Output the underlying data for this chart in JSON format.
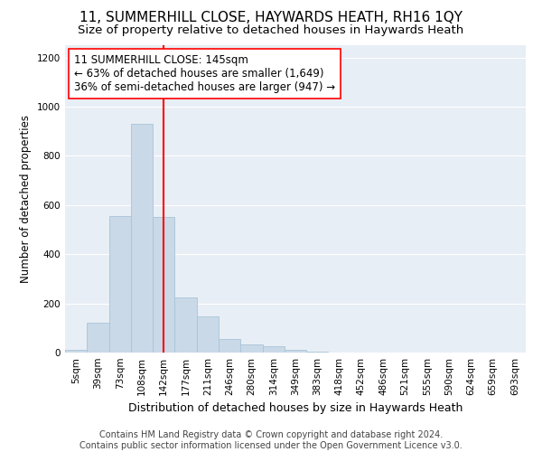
{
  "title": "11, SUMMERHILL CLOSE, HAYWARDS HEATH, RH16 1QY",
  "subtitle": "Size of property relative to detached houses in Haywards Heath",
  "xlabel": "Distribution of detached houses by size in Haywards Heath",
  "ylabel": "Number of detached properties",
  "bin_labels": [
    "5sqm",
    "39sqm",
    "73sqm",
    "108sqm",
    "142sqm",
    "177sqm",
    "211sqm",
    "246sqm",
    "280sqm",
    "314sqm",
    "349sqm",
    "383sqm",
    "418sqm",
    "452sqm",
    "486sqm",
    "521sqm",
    "555sqm",
    "590sqm",
    "624sqm",
    "659sqm",
    "693sqm"
  ],
  "bar_heights": [
    10,
    120,
    555,
    930,
    550,
    225,
    148,
    55,
    33,
    25,
    10,
    5,
    0,
    0,
    0,
    0,
    0,
    0,
    0,
    0,
    0
  ],
  "bar_color": "#c9d9e8",
  "bar_edgecolor": "#a8c4d8",
  "vline_x": 4,
  "vline_color": "red",
  "annotation_text": "11 SUMMERHILL CLOSE: 145sqm\n← 63% of detached houses are smaller (1,649)\n36% of semi-detached houses are larger (947) →",
  "annotation_box_color": "white",
  "annotation_box_edgecolor": "red",
  "ylim": [
    0,
    1250
  ],
  "yticks": [
    0,
    200,
    400,
    600,
    800,
    1000,
    1200
  ],
  "background_color": "#e8eef5",
  "grid_color": "white",
  "footer_line1": "Contains HM Land Registry data © Crown copyright and database right 2024.",
  "footer_line2": "Contains public sector information licensed under the Open Government Licence v3.0.",
  "title_fontsize": 11,
  "subtitle_fontsize": 9.5,
  "xlabel_fontsize": 9,
  "ylabel_fontsize": 8.5,
  "tick_fontsize": 7.5,
  "annotation_fontsize": 8.5,
  "footer_fontsize": 7
}
